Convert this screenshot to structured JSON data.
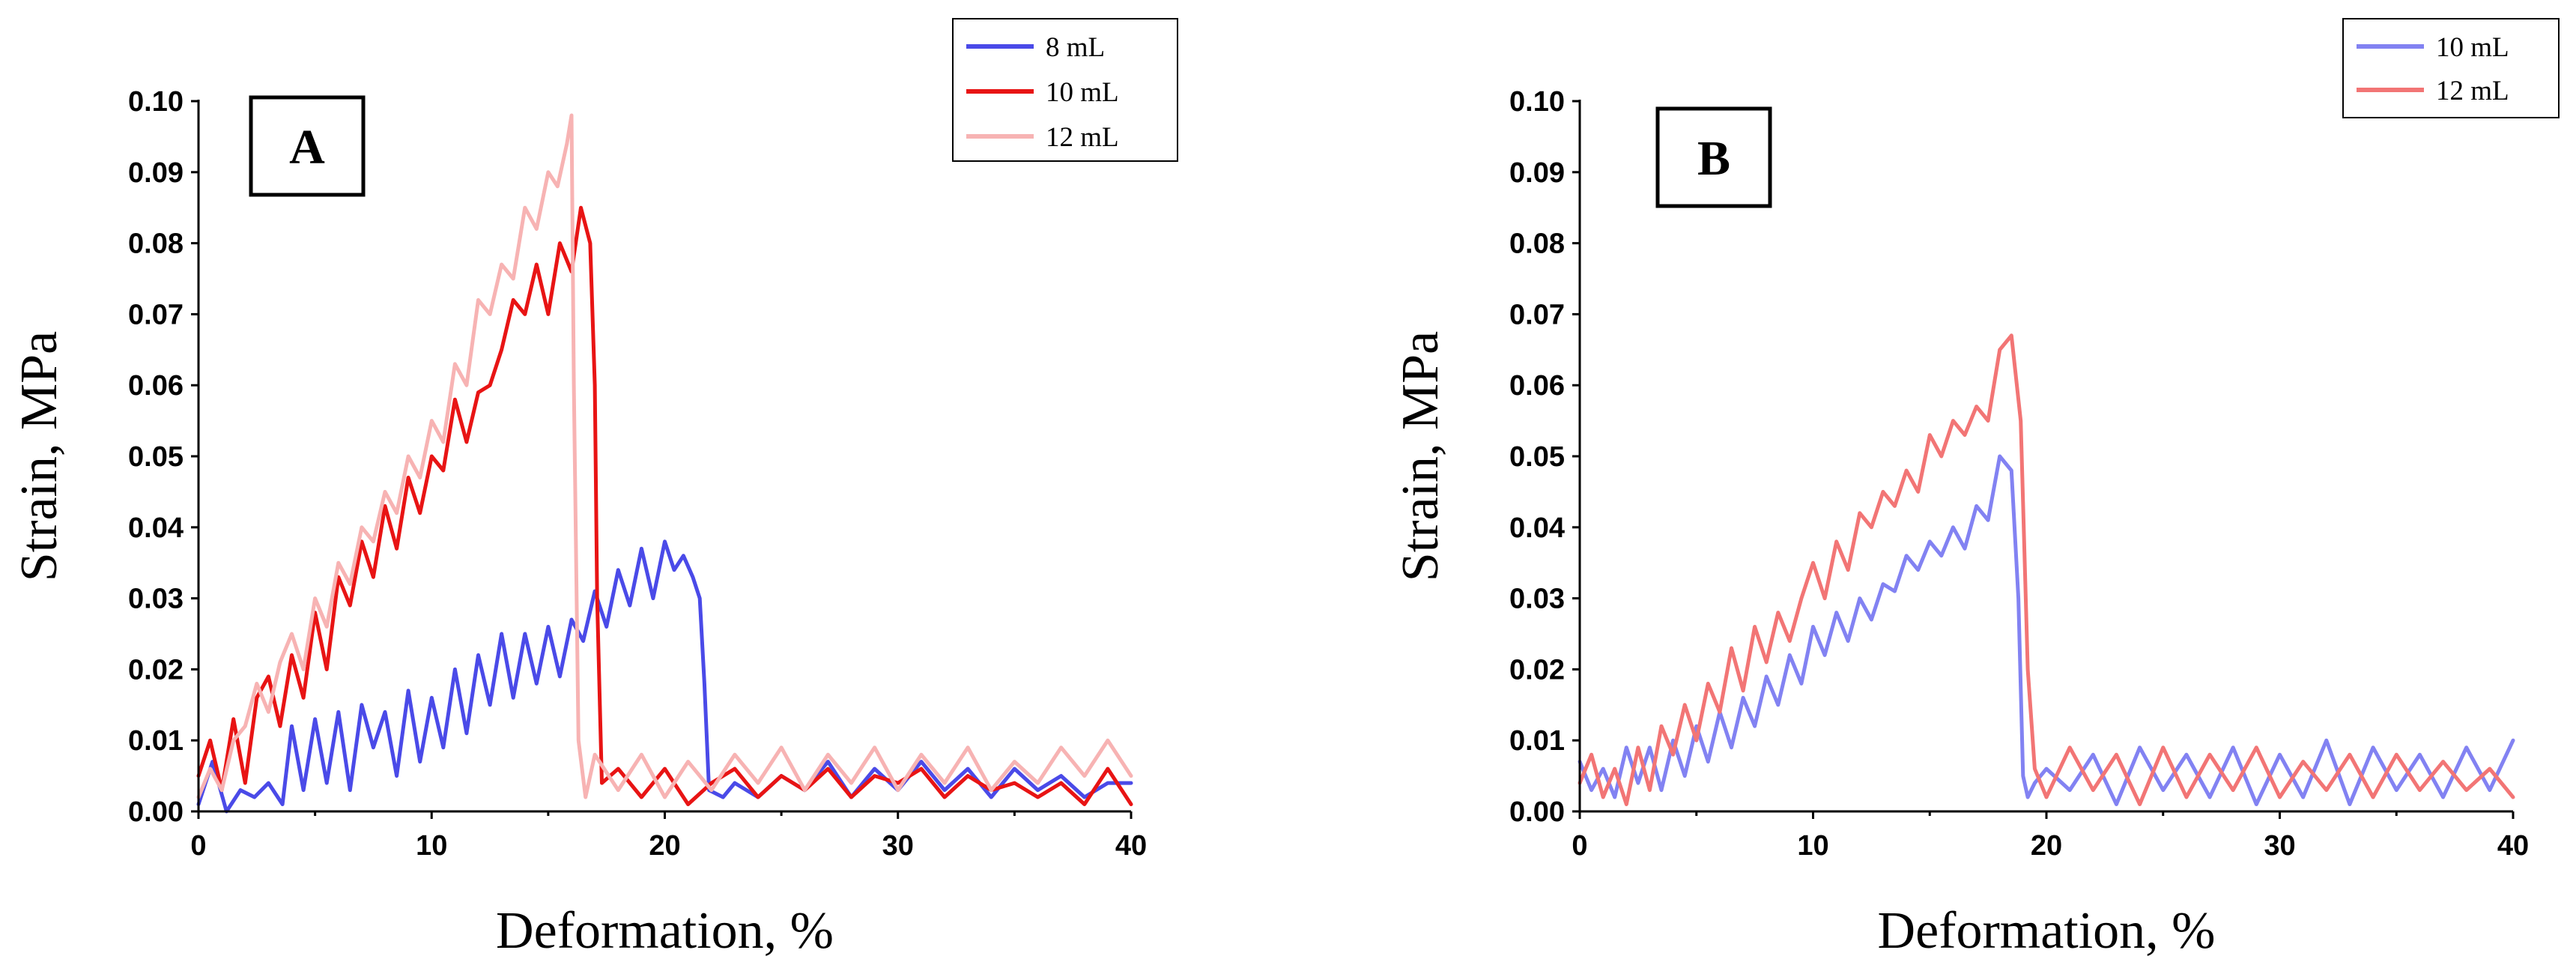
{
  "chart_data": [
    {
      "type": "line",
      "panel_label": "A",
      "xlabel": "Deformation, %",
      "ylabel": "Strain, MPa",
      "xlim": [
        0,
        40
      ],
      "ylim": [
        0,
        0.1
      ],
      "xticks": [
        "0",
        "10",
        "20",
        "30",
        "40"
      ],
      "yticks": [
        "0.00",
        "0.01",
        "0.02",
        "0.03",
        "0.04",
        "0.05",
        "0.06",
        "0.07",
        "0.08",
        "0.09",
        "0.10"
      ],
      "legend_position": "top-right",
      "series": [
        {
          "name": "8 mL",
          "color": "#4a4ae8",
          "x": [
            0,
            0.6,
            1.2,
            1.8,
            2.4,
            3.0,
            3.6,
            4.0,
            4.5,
            5.0,
            5.5,
            6.0,
            6.5,
            7.0,
            7.5,
            8.0,
            8.5,
            9.0,
            9.5,
            10.0,
            10.5,
            11.0,
            11.5,
            12.0,
            12.5,
            13.0,
            13.5,
            14.0,
            14.5,
            15.0,
            15.5,
            16.0,
            16.5,
            17.0,
            17.5,
            18.0,
            18.5,
            19.0,
            19.5,
            20.0,
            20.4,
            20.8,
            21.2,
            21.5,
            21.7,
            21.9,
            22.5,
            23.0,
            24.0,
            25.0,
            26.0,
            27.0,
            28.0,
            29.0,
            30.0,
            31.0,
            32.0,
            33.0,
            34.0,
            35.0,
            36.0,
            37.0,
            38.0,
            39.0,
            40.0
          ],
          "values": [
            0.001,
            0.007,
            0.0,
            0.003,
            0.002,
            0.004,
            0.001,
            0.012,
            0.003,
            0.013,
            0.004,
            0.014,
            0.003,
            0.015,
            0.009,
            0.014,
            0.005,
            0.017,
            0.007,
            0.016,
            0.009,
            0.02,
            0.011,
            0.022,
            0.015,
            0.025,
            0.016,
            0.025,
            0.018,
            0.026,
            0.019,
            0.027,
            0.024,
            0.031,
            0.026,
            0.034,
            0.029,
            0.037,
            0.03,
            0.038,
            0.034,
            0.036,
            0.033,
            0.03,
            0.018,
            0.003,
            0.002,
            0.004,
            0.002,
            0.005,
            0.003,
            0.007,
            0.002,
            0.006,
            0.003,
            0.007,
            0.003,
            0.006,
            0.002,
            0.006,
            0.003,
            0.005,
            0.002,
            0.004,
            0.004
          ]
        },
        {
          "name": "10 mL",
          "color": "#e81414",
          "x": [
            0,
            0.5,
            1.0,
            1.5,
            2.0,
            2.5,
            3.0,
            3.5,
            4.0,
            4.5,
            5.0,
            5.5,
            6.0,
            6.5,
            7.0,
            7.5,
            8.0,
            8.5,
            9.0,
            9.5,
            10.0,
            10.5,
            11.0,
            11.5,
            12.0,
            12.5,
            13.0,
            13.5,
            14.0,
            14.5,
            15.0,
            15.5,
            16.0,
            16.4,
            16.8,
            17.0,
            17.1,
            17.3,
            18.0,
            19.0,
            20.0,
            21.0,
            22.0,
            23.0,
            24.0,
            25.0,
            26.0,
            27.0,
            28.0,
            29.0,
            30.0,
            31.0,
            32.0,
            33.0,
            34.0,
            35.0,
            36.0,
            37.0,
            38.0,
            39.0,
            40.0
          ],
          "values": [
            0.005,
            0.01,
            0.003,
            0.013,
            0.004,
            0.016,
            0.019,
            0.012,
            0.022,
            0.016,
            0.028,
            0.02,
            0.033,
            0.029,
            0.038,
            0.033,
            0.043,
            0.037,
            0.047,
            0.042,
            0.05,
            0.048,
            0.058,
            0.052,
            0.059,
            0.06,
            0.065,
            0.072,
            0.07,
            0.077,
            0.07,
            0.08,
            0.076,
            0.085,
            0.08,
            0.06,
            0.03,
            0.004,
            0.006,
            0.002,
            0.006,
            0.001,
            0.004,
            0.006,
            0.002,
            0.005,
            0.003,
            0.006,
            0.002,
            0.005,
            0.004,
            0.006,
            0.002,
            0.005,
            0.003,
            0.004,
            0.002,
            0.004,
            0.001,
            0.006,
            0.001
          ]
        },
        {
          "name": "12 mL",
          "color": "#f7b3b3",
          "x": [
            0,
            0.5,
            1.0,
            1.5,
            2.0,
            2.5,
            3.0,
            3.5,
            4.0,
            4.5,
            5.0,
            5.5,
            6.0,
            6.5,
            7.0,
            7.5,
            8.0,
            8.5,
            9.0,
            9.5,
            10.0,
            10.5,
            11.0,
            11.5,
            12.0,
            12.5,
            13.0,
            13.5,
            14.0,
            14.5,
            15.0,
            15.4,
            15.8,
            16.0,
            16.1,
            16.3,
            16.6,
            17.0,
            18.0,
            19.0,
            20.0,
            21.0,
            22.0,
            23.0,
            24.0,
            25.0,
            26.0,
            27.0,
            28.0,
            29.0,
            30.0,
            31.0,
            32.0,
            33.0,
            34.0,
            35.0,
            36.0,
            37.0,
            38.0,
            39.0,
            40.0
          ],
          "values": [
            0.002,
            0.006,
            0.003,
            0.01,
            0.012,
            0.018,
            0.014,
            0.021,
            0.025,
            0.02,
            0.03,
            0.026,
            0.035,
            0.032,
            0.04,
            0.038,
            0.045,
            0.042,
            0.05,
            0.047,
            0.055,
            0.052,
            0.063,
            0.06,
            0.072,
            0.07,
            0.077,
            0.075,
            0.085,
            0.082,
            0.09,
            0.088,
            0.094,
            0.098,
            0.06,
            0.01,
            0.002,
            0.008,
            0.003,
            0.008,
            0.002,
            0.007,
            0.003,
            0.008,
            0.004,
            0.009,
            0.003,
            0.008,
            0.004,
            0.009,
            0.003,
            0.008,
            0.004,
            0.009,
            0.003,
            0.007,
            0.004,
            0.009,
            0.005,
            0.01,
            0.005
          ]
        }
      ]
    },
    {
      "type": "line",
      "panel_label": "B",
      "xlabel": "Deformation, %",
      "ylabel": "Strain, MPa",
      "xlim": [
        0,
        40
      ],
      "ylim": [
        0,
        0.1
      ],
      "xticks": [
        "0",
        "10",
        "20",
        "30",
        "40"
      ],
      "yticks": [
        "0.00",
        "0.01",
        "0.02",
        "0.03",
        "0.04",
        "0.05",
        "0.06",
        "0.07",
        "0.08",
        "0.09",
        "0.10"
      ],
      "legend_position": "top-right",
      "series": [
        {
          "name": "10 mL",
          "color": "#8282f2",
          "x": [
            0,
            0.5,
            1.0,
            1.5,
            2.0,
            2.5,
            3.0,
            3.5,
            4.0,
            4.5,
            5.0,
            5.5,
            6.0,
            6.5,
            7.0,
            7.5,
            8.0,
            8.5,
            9.0,
            9.5,
            10.0,
            10.5,
            11.0,
            11.5,
            12.0,
            12.5,
            13.0,
            13.5,
            14.0,
            14.5,
            15.0,
            15.5,
            16.0,
            16.5,
            17.0,
            17.5,
            18.0,
            18.5,
            18.8,
            19.0,
            19.2,
            19.5,
            20.0,
            21.0,
            22.0,
            23.0,
            24.0,
            25.0,
            26.0,
            27.0,
            28.0,
            29.0,
            30.0,
            31.0,
            32.0,
            33.0,
            34.0,
            35.0,
            36.0,
            37.0,
            38.0,
            39.0,
            40.0
          ],
          "values": [
            0.007,
            0.003,
            0.006,
            0.002,
            0.009,
            0.004,
            0.009,
            0.003,
            0.01,
            0.005,
            0.012,
            0.007,
            0.014,
            0.009,
            0.016,
            0.012,
            0.019,
            0.015,
            0.022,
            0.018,
            0.026,
            0.022,
            0.028,
            0.024,
            0.03,
            0.027,
            0.032,
            0.031,
            0.036,
            0.034,
            0.038,
            0.036,
            0.04,
            0.037,
            0.043,
            0.041,
            0.05,
            0.048,
            0.03,
            0.005,
            0.002,
            0.004,
            0.006,
            0.003,
            0.008,
            0.001,
            0.009,
            0.003,
            0.008,
            0.002,
            0.009,
            0.001,
            0.008,
            0.002,
            0.01,
            0.001,
            0.009,
            0.003,
            0.008,
            0.002,
            0.009,
            0.003,
            0.01
          ]
        },
        {
          "name": "12 mL",
          "color": "#f27575",
          "x": [
            0,
            0.5,
            1.0,
            1.5,
            2.0,
            2.5,
            3.0,
            3.5,
            4.0,
            4.5,
            5.0,
            5.5,
            6.0,
            6.5,
            7.0,
            7.5,
            8.0,
            8.5,
            9.0,
            9.5,
            10.0,
            10.5,
            11.0,
            11.5,
            12.0,
            12.5,
            13.0,
            13.5,
            14.0,
            14.5,
            15.0,
            15.5,
            16.0,
            16.5,
            17.0,
            17.5,
            18.0,
            18.5,
            18.9,
            19.2,
            19.5,
            20.0,
            21.0,
            22.0,
            23.0,
            24.0,
            25.0,
            26.0,
            27.0,
            28.0,
            29.0,
            30.0,
            31.0,
            32.0,
            33.0,
            34.0,
            35.0,
            36.0,
            37.0,
            38.0,
            39.0,
            40.0
          ],
          "values": [
            0.004,
            0.008,
            0.002,
            0.006,
            0.001,
            0.009,
            0.003,
            0.012,
            0.008,
            0.015,
            0.01,
            0.018,
            0.014,
            0.023,
            0.017,
            0.026,
            0.021,
            0.028,
            0.024,
            0.03,
            0.035,
            0.03,
            0.038,
            0.034,
            0.042,
            0.04,
            0.045,
            0.043,
            0.048,
            0.045,
            0.053,
            0.05,
            0.055,
            0.053,
            0.057,
            0.055,
            0.065,
            0.067,
            0.055,
            0.02,
            0.006,
            0.002,
            0.009,
            0.003,
            0.008,
            0.001,
            0.009,
            0.002,
            0.008,
            0.003,
            0.009,
            0.002,
            0.007,
            0.003,
            0.008,
            0.002,
            0.008,
            0.003,
            0.007,
            0.003,
            0.006,
            0.002
          ]
        }
      ]
    }
  ]
}
